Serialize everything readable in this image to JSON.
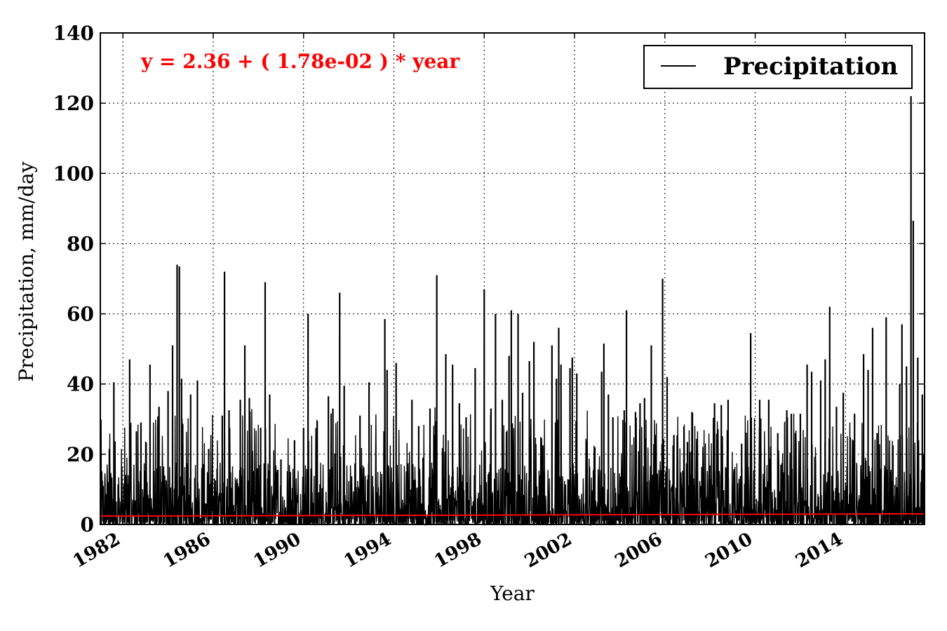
{
  "chart_data": {
    "type": "line",
    "title": "",
    "xlabel": "Year",
    "ylabel": "Precipitation, mm/day",
    "xlim": [
      1981,
      2017.5
    ],
    "ylim": [
      0,
      140
    ],
    "x_ticks": [
      "1982",
      "1986",
      "1990",
      "1994",
      "1998",
      "2002",
      "2006",
      "2010",
      "2014"
    ],
    "y_ticks": [
      0,
      20,
      40,
      60,
      80,
      100,
      120,
      140
    ],
    "grid": true,
    "legend_position": "top-right",
    "annotation": "y = 2.36 + ( 1.78e-02 ) * year",
    "series": [
      {
        "name": "Precipitation",
        "color": "#000000",
        "peaks": [
          [
            1981.4,
            21.5
          ],
          [
            1981.6,
            40.5
          ],
          [
            1982.3,
            47.0
          ],
          [
            1982.6,
            26.5
          ],
          [
            1982.8,
            29.0
          ],
          [
            1983.2,
            45.5
          ],
          [
            1983.6,
            33.5
          ],
          [
            1984.0,
            38.0
          ],
          [
            1984.2,
            51.0
          ],
          [
            1984.4,
            74.0
          ],
          [
            1984.5,
            73.5
          ],
          [
            1984.6,
            41.5
          ],
          [
            1985.0,
            37.0
          ],
          [
            1985.3,
            41.0
          ],
          [
            1985.8,
            21.5
          ],
          [
            1986.4,
            31.0
          ],
          [
            1986.5,
            72.0
          ],
          [
            1986.7,
            32.5
          ],
          [
            1987.2,
            35.5
          ],
          [
            1987.4,
            51.0
          ],
          [
            1987.6,
            36.0
          ],
          [
            1988.1,
            27.5
          ],
          [
            1988.3,
            69.0
          ],
          [
            1988.5,
            37.0
          ],
          [
            1989.0,
            18.5
          ],
          [
            1989.6,
            24.0
          ],
          [
            1990.0,
            27.5
          ],
          [
            1990.2,
            60.0
          ],
          [
            1990.6,
            29.5
          ],
          [
            1991.1,
            36.5
          ],
          [
            1991.3,
            33.0
          ],
          [
            1991.6,
            66.0
          ],
          [
            1991.8,
            39.5
          ],
          [
            1992.5,
            31.0
          ],
          [
            1992.9,
            40.5
          ],
          [
            1993.6,
            58.5
          ],
          [
            1993.7,
            44.0
          ],
          [
            1994.1,
            46.0
          ],
          [
            1994.8,
            35.5
          ],
          [
            1995.1,
            28.0
          ],
          [
            1995.6,
            33.0
          ],
          [
            1995.9,
            71.0
          ],
          [
            1996.3,
            48.5
          ],
          [
            1996.6,
            45.5
          ],
          [
            1996.9,
            34.5
          ],
          [
            1997.2,
            30.5
          ],
          [
            1997.6,
            44.5
          ],
          [
            1998.0,
            67.0
          ],
          [
            1998.3,
            33.0
          ],
          [
            1998.5,
            60.0
          ],
          [
            1998.8,
            35.5
          ],
          [
            1999.1,
            48.0
          ],
          [
            1999.2,
            61.0
          ],
          [
            1999.5,
            60.0
          ],
          [
            1999.7,
            37.5
          ],
          [
            2000.0,
            46.5
          ],
          [
            2000.2,
            52.0
          ],
          [
            2000.6,
            22.5
          ],
          [
            2001.0,
            51.0
          ],
          [
            2001.2,
            41.5
          ],
          [
            2001.3,
            56.0
          ],
          [
            2001.4,
            45.5
          ],
          [
            2001.8,
            44.5
          ],
          [
            2001.9,
            47.5
          ],
          [
            2002.1,
            43.0
          ],
          [
            2002.9,
            22.0
          ],
          [
            2003.2,
            43.5
          ],
          [
            2003.3,
            51.5
          ],
          [
            2003.5,
            37.0
          ],
          [
            2003.7,
            30.5
          ],
          [
            2004.2,
            32.5
          ],
          [
            2004.3,
            61.0
          ],
          [
            2004.7,
            32.0
          ],
          [
            2004.9,
            34.5
          ],
          [
            2005.1,
            36.0
          ],
          [
            2005.4,
            51.0
          ],
          [
            2005.6,
            25.5
          ],
          [
            2005.9,
            70.0
          ],
          [
            2006.1,
            42.0
          ],
          [
            2006.4,
            25.5
          ],
          [
            2007.0,
            23.5
          ],
          [
            2007.2,
            32.0
          ],
          [
            2008.0,
            13.0
          ],
          [
            2008.2,
            34.5
          ],
          [
            2008.5,
            34.0
          ],
          [
            2008.8,
            35.5
          ],
          [
            2009.4,
            23.0
          ],
          [
            2009.8,
            54.5
          ],
          [
            2010.2,
            35.5
          ],
          [
            2010.6,
            35.5
          ],
          [
            2011.0,
            26.0
          ],
          [
            2011.4,
            32.5
          ],
          [
            2011.6,
            31.5
          ],
          [
            2012.0,
            31.5
          ],
          [
            2012.3,
            45.5
          ],
          [
            2012.5,
            43.5
          ],
          [
            2012.9,
            41.0
          ],
          [
            2013.1,
            47.0
          ],
          [
            2013.3,
            62.0
          ],
          [
            2013.6,
            33.5
          ],
          [
            2013.9,
            37.5
          ],
          [
            2014.4,
            31.5
          ],
          [
            2014.8,
            48.5
          ],
          [
            2015.0,
            44.0
          ],
          [
            2015.2,
            56.0
          ],
          [
            2015.4,
            26.0
          ],
          [
            2015.8,
            59.0
          ],
          [
            2016.1,
            22.5
          ],
          [
            2016.4,
            40.0
          ],
          [
            2016.5,
            57.0
          ],
          [
            2016.7,
            45.0
          ],
          [
            2016.9,
            122.0
          ],
          [
            2017.0,
            86.5
          ],
          [
            2017.2,
            47.5
          ],
          [
            2017.4,
            37.0
          ]
        ]
      },
      {
        "name": "",
        "color": "#ff0000",
        "x": [
          1981,
          2017.5
        ],
        "y": [
          2.36,
          3.01
        ]
      }
    ]
  }
}
